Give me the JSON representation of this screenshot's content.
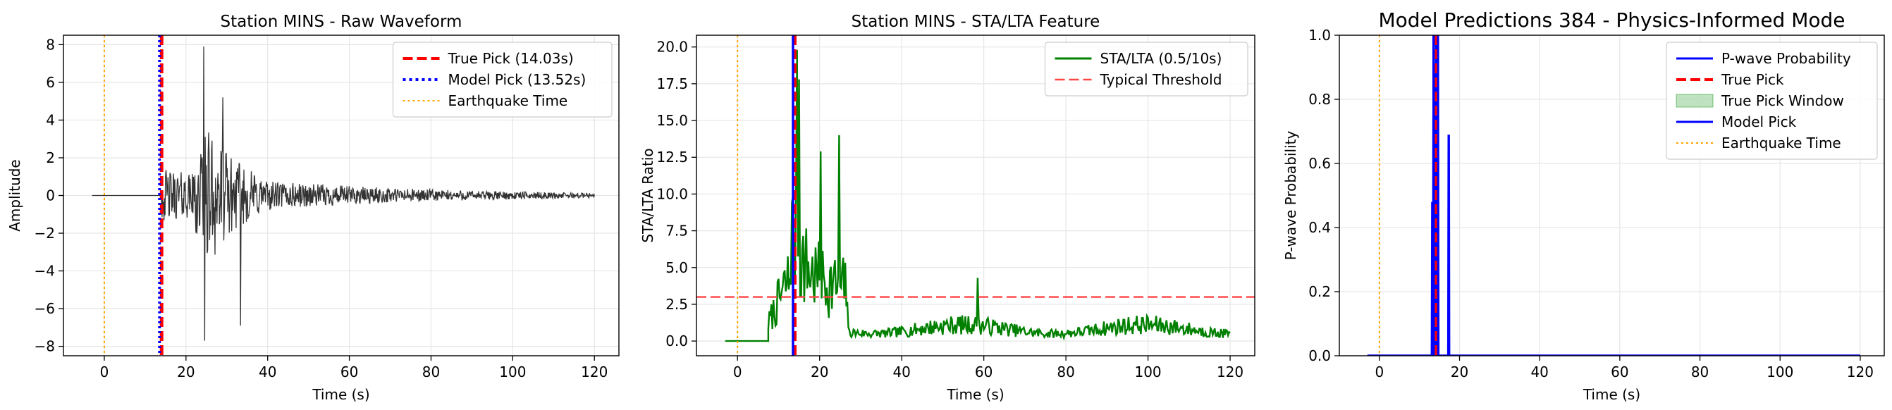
{
  "chart_data": [
    {
      "type": "line",
      "title": "Station MINS - Raw Waveform",
      "xlabel": "Time (s)",
      "ylabel": "Amplitude",
      "xlim": [
        -10,
        126
      ],
      "ylim": [
        -8.5,
        8.5
      ],
      "xticks": [
        0,
        20,
        40,
        60,
        80,
        100,
        120
      ],
      "yticks": [
        -8,
        -6,
        -4,
        -2,
        0,
        2,
        4,
        6,
        8
      ],
      "grid": true,
      "legend_position": "top-right",
      "series": [
        {
          "name": "Raw Waveform",
          "kind": "waveform",
          "color": "#333333",
          "x_start": -3,
          "x_end": 120,
          "onset": 14.03
        },
        {
          "name": "True Pick (14.03s)",
          "kind": "vline",
          "x": 14.03,
          "color": "#ff0000",
          "style": "dashed"
        },
        {
          "name": "Model Pick (13.52s)",
          "kind": "vline",
          "x": 13.52,
          "color": "#0000ff",
          "style": "dotted"
        },
        {
          "name": "Earthquake Time",
          "kind": "vline",
          "x": 0,
          "color": "#ffa500",
          "style": "dotted"
        }
      ],
      "legend": [
        "True Pick (14.03s)",
        "Model Pick (13.52s)",
        "Earthquake Time"
      ],
      "peaks": [
        [
          24.3,
          7.9
        ],
        [
          24.6,
          -7.7
        ],
        [
          33.4,
          -6.9
        ],
        [
          29.0,
          5.2
        ]
      ]
    },
    {
      "type": "line",
      "title": "Station MINS - STA/LTA Feature",
      "xlabel": "Time (s)",
      "ylabel": "STA/LTA Ratio",
      "xlim": [
        -10,
        126
      ],
      "ylim": [
        -1,
        20.8
      ],
      "xticks": [
        0,
        20,
        40,
        60,
        80,
        100,
        120
      ],
      "yticks": [
        0.0,
        2.5,
        5.0,
        7.5,
        10.0,
        12.5,
        15.0,
        17.5,
        20.0
      ],
      "grid": true,
      "legend_position": "top-right",
      "series": [
        {
          "name": "STA/LTA (0.5/10s)",
          "kind": "stalta",
          "color": "#008000",
          "x_start": -3,
          "x_end": 120
        },
        {
          "name": "Typical Threshold",
          "kind": "hline",
          "y": 3.0,
          "color": "#ff4444",
          "style": "dashed"
        },
        {
          "name": "True Pick",
          "kind": "vline",
          "x": 14.03,
          "color": "#ff0000",
          "style": "dashed"
        },
        {
          "name": "Model Pick",
          "kind": "vline",
          "x": 13.52,
          "color": "#0000ff",
          "style": "solid"
        },
        {
          "name": "Earthquake Time",
          "kind": "vline",
          "x": 0,
          "color": "#ffa500",
          "style": "dotted"
        }
      ],
      "legend": [
        "STA/LTA (0.5/10s)",
        "Typical Threshold"
      ],
      "peaks": [
        [
          14.5,
          19.8
        ],
        [
          15.0,
          17.8
        ],
        [
          24.8,
          14.0
        ],
        [
          20.3,
          12.9
        ],
        [
          58.5,
          4.3
        ]
      ]
    },
    {
      "type": "line",
      "title": "Model Predictions 384 - Physics-Informed Mode",
      "xlabel": "Time (s)",
      "ylabel": "P-wave Probability",
      "xlim": [
        -10,
        126
      ],
      "ylim": [
        0.0,
        1.0
      ],
      "xticks": [
        0,
        20,
        40,
        60,
        80,
        100,
        120
      ],
      "yticks": [
        0.0,
        0.2,
        0.4,
        0.6,
        0.8,
        1.0
      ],
      "grid": true,
      "legend_position": "top-right",
      "series": [
        {
          "name": "P-wave Probability",
          "kind": "probability",
          "color": "#0000ff",
          "x_start": -3,
          "x_end": 120,
          "spikes": [
            [
              13.2,
              0.48
            ],
            [
              13.5,
              0.75
            ],
            [
              13.8,
              0.88
            ],
            [
              14.2,
              1.0
            ],
            [
              14.6,
              1.0
            ],
            [
              17.3,
              0.69
            ]
          ]
        },
        {
          "name": "True Pick",
          "kind": "vline",
          "x": 14.03,
          "color": "#ff0000",
          "style": "dashed"
        },
        {
          "name": "True Pick Window",
          "kind": "span",
          "x0": 13.53,
          "x1": 14.53,
          "color": "#2ca02c"
        },
        {
          "name": "Model Pick",
          "kind": "vline",
          "x": 13.52,
          "color": "#0000ff",
          "style": "solid"
        },
        {
          "name": "Earthquake Time",
          "kind": "vline",
          "x": 0,
          "color": "#ffa500",
          "style": "dotted"
        }
      ],
      "legend": [
        "P-wave Probability",
        "True Pick",
        "True Pick Window",
        "Model Pick",
        "Earthquake Time"
      ]
    }
  ]
}
